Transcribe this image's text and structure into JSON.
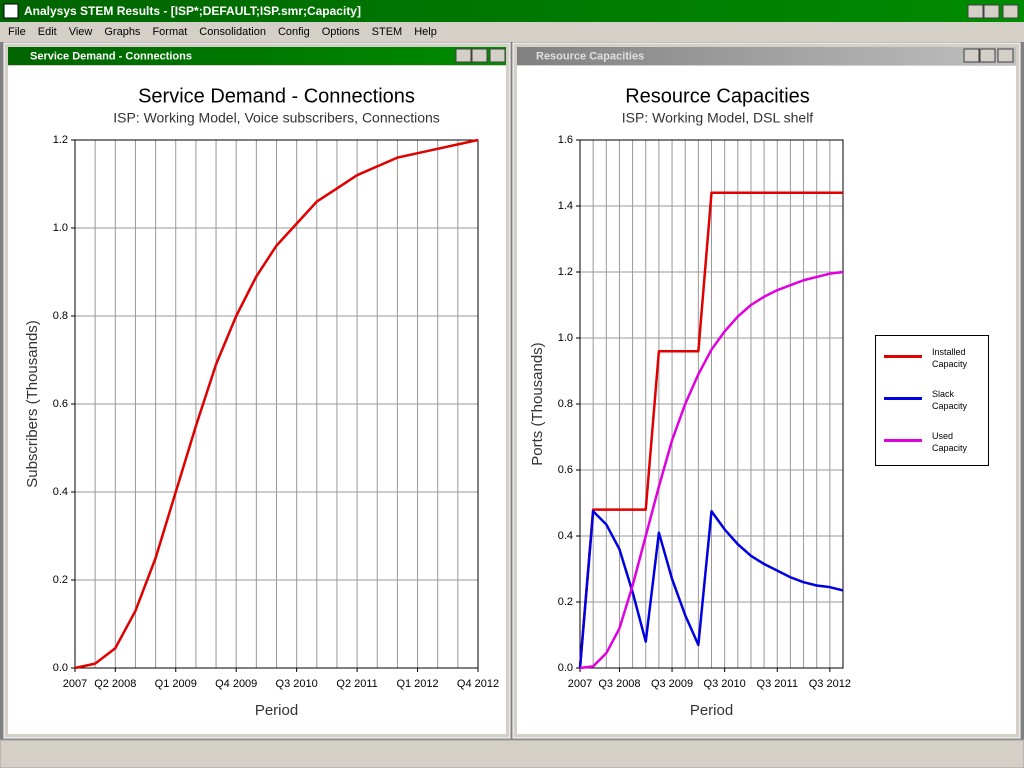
{
  "window": {
    "title": "Analysys STEM Results - [ISP*;DEFAULT;ISP.smr;Capacity]"
  },
  "menu": [
    "File",
    "Edit",
    "View",
    "Graphs",
    "Format",
    "Consolidation",
    "Config",
    "Options",
    "STEM",
    "Help"
  ],
  "panels": [
    {
      "title": "Service Demand - Connections"
    },
    {
      "title": "Resource Capacities"
    }
  ],
  "chart_data": [
    {
      "type": "line",
      "title": "Service Demand - Connections",
      "subtitle": "ISP:  Working Model, Voice subscribers, Connections",
      "x_label": "Period",
      "y_label": "Subscribers  (Thousands)",
      "categories": [
        "2007",
        null,
        "Q2 2008",
        null,
        null,
        "Q1 2009",
        null,
        null,
        "Q4 2009",
        null,
        null,
        "Q3 2010",
        null,
        null,
        "Q2 2011",
        null,
        null,
        "Q1 2012",
        null,
        null,
        "Q4 2012"
      ],
      "values": [
        0,
        0.01,
        0.045,
        0.13,
        0.25,
        0.4,
        0.55,
        0.69,
        0.8,
        0.89,
        0.96,
        1.01,
        1.06,
        1.09,
        1.12,
        1.14,
        1.16,
        1.17,
        1.18,
        1.19,
        1.2
      ],
      "color": "#e00000",
      "ylim": [
        0,
        1.2
      ],
      "yticks": [
        {
          "value": 0,
          "label": "0.0"
        },
        0.2,
        0.4,
        0.6,
        0.8,
        {
          "value": 1,
          "label": "1.0"
        },
        1.2
      ],
      "grid": true
    },
    {
      "type": "line",
      "title": "Resource Capacities",
      "subtitle": "ISP:  Working Model, DSL shelf",
      "x_label": "Period",
      "y_label": "Ports  (Thousands)",
      "categories": [
        "2007",
        null,
        null,
        "Q3 2008",
        null,
        null,
        null,
        "Q3 2009",
        null,
        null,
        null,
        "Q3 2010",
        null,
        null,
        null,
        "Q3 2011",
        null,
        null,
        null,
        "Q3 2012",
        null
      ],
      "series": [
        {
          "name": "Installed Capacity",
          "color": "#e00000",
          "values": [
            0,
            0.48,
            0.48,
            0.48,
            0.48,
            0.48,
            0.96,
            0.96,
            0.96,
            0.96,
            1.44,
            1.44,
            1.44,
            1.44,
            1.44,
            1.44,
            1.44,
            1.44,
            1.44,
            1.44,
            1.44
          ]
        },
        {
          "name": "Slack Capacity",
          "color": "#0000e0",
          "values": [
            0,
            0.475,
            0.435,
            0.36,
            0.23,
            0.08,
            0.41,
            0.27,
            0.16,
            0.07,
            0.475,
            0.42,
            0.375,
            0.34,
            0.315,
            0.295,
            0.275,
            0.26,
            0.25,
            0.245,
            0.235
          ]
        },
        {
          "name": "Used Capacity",
          "color": "#e000e0",
          "values": [
            0,
            0.005,
            0.045,
            0.12,
            0.25,
            0.4,
            0.55,
            0.69,
            0.8,
            0.89,
            0.965,
            1.02,
            1.065,
            1.1,
            1.125,
            1.145,
            1.16,
            1.175,
            1.185,
            1.195,
            1.2
          ]
        }
      ],
      "ylim": [
        0,
        1.6
      ],
      "yticks": [
        {
          "value": 0,
          "label": "0.0"
        },
        0.2,
        0.4,
        0.6,
        0.8,
        {
          "value": 1,
          "label": "1.0"
        },
        1.2,
        1.4,
        1.6
      ],
      "grid": true,
      "legend": "right"
    }
  ]
}
